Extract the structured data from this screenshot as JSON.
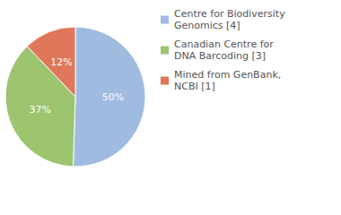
{
  "chart_data": {
    "type": "pie",
    "categories": [
      "Centre for Biodiversity Genomics [4]",
      "Canadian Centre for DNA Barcoding [3]",
      "Mined from GenBank, NCBI [1]"
    ],
    "values": [
      50,
      37,
      12
    ],
    "value_labels": [
      "50%",
      "37%",
      "12%"
    ],
    "colors": [
      "#9fbbe0",
      "#9dc46f",
      "#e0765a"
    ],
    "data_labels": true,
    "legend": "top-right"
  }
}
